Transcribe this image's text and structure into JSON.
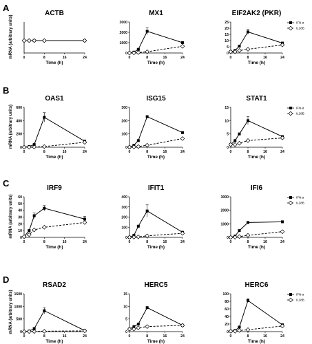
{
  "figure": {
    "panel_labels": [
      "A",
      "B",
      "C",
      "D"
    ],
    "ylabel": "mRNA (arbitrary units)",
    "xlabel": "Time (h)",
    "legend": [
      "IFN-α",
      "IL28B"
    ]
  },
  "chart_data": [
    {
      "type": "line",
      "title": "ACTB",
      "xlabel": "Time (h)",
      "ylabel": "mRNA (arbitrary units)",
      "x": [
        0,
        2,
        4,
        8,
        24
      ],
      "xticks": [
        0,
        8,
        16,
        24
      ],
      "ylim": [
        0,
        2.5
      ],
      "yticks": [],
      "series": [
        {
          "name": "IFN-α",
          "values": [
            1,
            1,
            1,
            1,
            1
          ],
          "err": [
            0,
            0,
            0,
            0,
            0
          ]
        },
        {
          "name": "IL28B",
          "values": [
            1,
            1,
            1,
            1,
            1
          ],
          "err": [
            0,
            0,
            0,
            0,
            0
          ]
        }
      ]
    },
    {
      "type": "line",
      "title": "MX1",
      "xlabel": "Time (h)",
      "ylabel": "",
      "x": [
        0,
        2,
        4,
        8,
        24
      ],
      "xticks": [
        0,
        8,
        16,
        24
      ],
      "ylim": [
        0,
        3000
      ],
      "yticks": [
        0,
        1000,
        2000,
        3000
      ],
      "series": [
        {
          "name": "IFN-α",
          "values": [
            1,
            80,
            350,
            2100,
            1000
          ],
          "err": [
            0,
            0,
            40,
            350,
            0
          ]
        },
        {
          "name": "IL28B",
          "values": [
            1,
            5,
            40,
            120,
            650
          ],
          "err": [
            0,
            0,
            0,
            0,
            0
          ]
        }
      ]
    },
    {
      "type": "line",
      "title": "EIF2AK2 (PKR)",
      "xlabel": "Time (h)",
      "ylabel": "",
      "x": [
        0,
        2,
        4,
        8,
        24
      ],
      "xticks": [
        0,
        8,
        16,
        24
      ],
      "ylim": [
        0,
        25
      ],
      "yticks": [
        0,
        5,
        10,
        15,
        20,
        25
      ],
      "legend": [
        "IFN-α",
        "IL28B"
      ],
      "series": [
        {
          "name": "IFN-α",
          "values": [
            1,
            2,
            5.5,
            17,
            8
          ],
          "err": [
            0,
            0,
            0,
            2,
            0
          ]
        },
        {
          "name": "IL28B",
          "values": [
            1,
            1,
            2,
            3,
            6.5
          ],
          "err": [
            0,
            0,
            0,
            0,
            0
          ]
        }
      ]
    },
    {
      "type": "line",
      "title": "OAS1",
      "xlabel": "Time (h)",
      "ylabel": "mRNA (arbitrary units)",
      "x": [
        0,
        2,
        4,
        8,
        24
      ],
      "xticks": [
        0,
        8,
        16,
        24
      ],
      "ylim": [
        0,
        600
      ],
      "yticks": [
        0,
        200,
        400,
        600
      ],
      "series": [
        {
          "name": "IFN-α",
          "values": [
            1,
            10,
            40,
            450,
            90
          ],
          "err": [
            0,
            0,
            0,
            70,
            20
          ]
        },
        {
          "name": "IL28B",
          "values": [
            1,
            1,
            3,
            10,
            75
          ],
          "err": [
            0,
            0,
            0,
            0,
            0
          ]
        }
      ]
    },
    {
      "type": "line",
      "title": "ISG15",
      "xlabel": "Time (h)",
      "ylabel": "",
      "x": [
        0,
        2,
        4,
        8,
        24
      ],
      "xticks": [
        0,
        8,
        16,
        24
      ],
      "ylim": [
        0,
        300
      ],
      "yticks": [
        0,
        100,
        200,
        300
      ],
      "series": [
        {
          "name": "IFN-α",
          "values": [
            1,
            15,
            50,
            230,
            110
          ],
          "err": [
            0,
            0,
            0,
            0,
            0
          ]
        },
        {
          "name": "IL28B",
          "values": [
            1,
            2,
            5,
            15,
            65
          ],
          "err": [
            0,
            0,
            0,
            0,
            0
          ]
        }
      ]
    },
    {
      "type": "line",
      "title": "STAT1",
      "xlabel": "Time (h)",
      "ylabel": "",
      "x": [
        0,
        2,
        4,
        8,
        24
      ],
      "xticks": [
        0,
        8,
        16,
        24
      ],
      "ylim": [
        0,
        15
      ],
      "yticks": [
        0,
        5,
        10,
        15
      ],
      "legend": [
        "IFN-α",
        "IL28B"
      ],
      "series": [
        {
          "name": "IFN-α",
          "values": [
            1,
            2.5,
            5,
            10,
            4
          ],
          "err": [
            0,
            0,
            0,
            1.5,
            0
          ]
        },
        {
          "name": "IL28B",
          "values": [
            1,
            1,
            1.5,
            2.5,
            3.5
          ],
          "err": [
            0,
            0,
            0,
            0,
            0
          ]
        }
      ]
    },
    {
      "type": "line",
      "title": "IRF9",
      "xlabel": "Time (h)",
      "ylabel": "mRNA (arbitrary units)",
      "x": [
        0,
        2,
        4,
        8,
        24
      ],
      "xticks": [
        0,
        8,
        16,
        24
      ],
      "ylim": [
        0,
        60
      ],
      "yticks": [
        0,
        10,
        20,
        30,
        40,
        50,
        60
      ],
      "series": [
        {
          "name": "IFN-α",
          "values": [
            1,
            10,
            32,
            43,
            27
          ],
          "err": [
            0,
            0,
            4,
            4,
            4
          ]
        },
        {
          "name": "IL28B",
          "values": [
            1,
            4,
            11,
            15,
            22
          ],
          "err": [
            0,
            0,
            0,
            0,
            0
          ]
        }
      ]
    },
    {
      "type": "line",
      "title": "IFIT1",
      "xlabel": "Time (h)",
      "ylabel": "",
      "x": [
        0,
        2,
        4,
        8,
        24
      ],
      "xticks": [
        0,
        8,
        16,
        24
      ],
      "ylim": [
        0,
        400
      ],
      "yticks": [
        0,
        100,
        200,
        300,
        400
      ],
      "series": [
        {
          "name": "IFN-α",
          "values": [
            1,
            20,
            110,
            260,
            50
          ],
          "err": [
            0,
            0,
            0,
            60,
            0
          ]
        },
        {
          "name": "IL28B",
          "values": [
            1,
            2,
            5,
            15,
            40
          ],
          "err": [
            0,
            0,
            0,
            0,
            0
          ]
        }
      ]
    },
    {
      "type": "line",
      "title": "IFI6",
      "xlabel": "Time (h)",
      "ylabel": "",
      "x": [
        0,
        2,
        4,
        8,
        24
      ],
      "xticks": [
        0,
        8,
        16,
        24
      ],
      "ylim": [
        0,
        3000
      ],
      "yticks": [
        0,
        1000,
        2000,
        3000
      ],
      "legend": [
        "IFN-α",
        "IL28B"
      ],
      "series": [
        {
          "name": "IFN-α",
          "values": [
            1,
            100,
            500,
            1100,
            1150
          ],
          "err": [
            0,
            0,
            0,
            0,
            0
          ]
        },
        {
          "name": "IL28B",
          "values": [
            1,
            10,
            60,
            150,
            420
          ],
          "err": [
            0,
            0,
            0,
            0,
            0
          ]
        }
      ]
    },
    {
      "type": "line",
      "title": "RSAD2",
      "xlabel": "Time (h)",
      "ylabel": "mRNA (arbitrary units)",
      "x": [
        0,
        2,
        4,
        8,
        24
      ],
      "xticks": [
        0,
        8,
        16,
        24
      ],
      "ylim": [
        0,
        1500
      ],
      "yticks": [
        0,
        500,
        1000,
        1500
      ],
      "series": [
        {
          "name": "IFN-α",
          "values": [
            1,
            20,
            120,
            830,
            40
          ],
          "err": [
            0,
            0,
            0,
            120,
            0
          ]
        },
        {
          "name": "IL28B",
          "values": [
            1,
            2,
            5,
            15,
            30
          ],
          "err": [
            0,
            0,
            0,
            0,
            0
          ]
        }
      ]
    },
    {
      "type": "line",
      "title": "HERC5",
      "xlabel": "Time (h)",
      "ylabel": "",
      "x": [
        0,
        2,
        4,
        8,
        24
      ],
      "xticks": [
        0,
        8,
        16,
        24
      ],
      "ylim": [
        0,
        15
      ],
      "yticks": [
        0,
        5,
        10,
        15
      ],
      "series": [
        {
          "name": "IFN-α",
          "values": [
            1,
            2,
            3,
            9.5,
            2.5
          ],
          "err": [
            0,
            0,
            0,
            0,
            0
          ]
        },
        {
          "name": "IL28B",
          "values": [
            1,
            1,
            1.5,
            2,
            2.5
          ],
          "err": [
            0,
            0,
            0,
            0,
            0
          ]
        }
      ]
    },
    {
      "type": "line",
      "title": "HERC6",
      "xlabel": "Time (h)",
      "ylabel": "",
      "x": [
        0,
        2,
        4,
        8,
        24
      ],
      "xticks": [
        0,
        8,
        16,
        24
      ],
      "ylim": [
        0,
        100
      ],
      "yticks": [
        0,
        20,
        40,
        60,
        80,
        100
      ],
      "legend": [
        "IFN-α",
        "IL28B"
      ],
      "series": [
        {
          "name": "IFN-α",
          "values": [
            1,
            3,
            12,
            82,
            18
          ],
          "err": [
            0,
            0,
            0,
            5,
            0
          ]
        },
        {
          "name": "IL28B",
          "values": [
            1,
            1,
            3,
            5,
            15
          ],
          "err": [
            0,
            0,
            0,
            0,
            0
          ]
        }
      ]
    }
  ]
}
